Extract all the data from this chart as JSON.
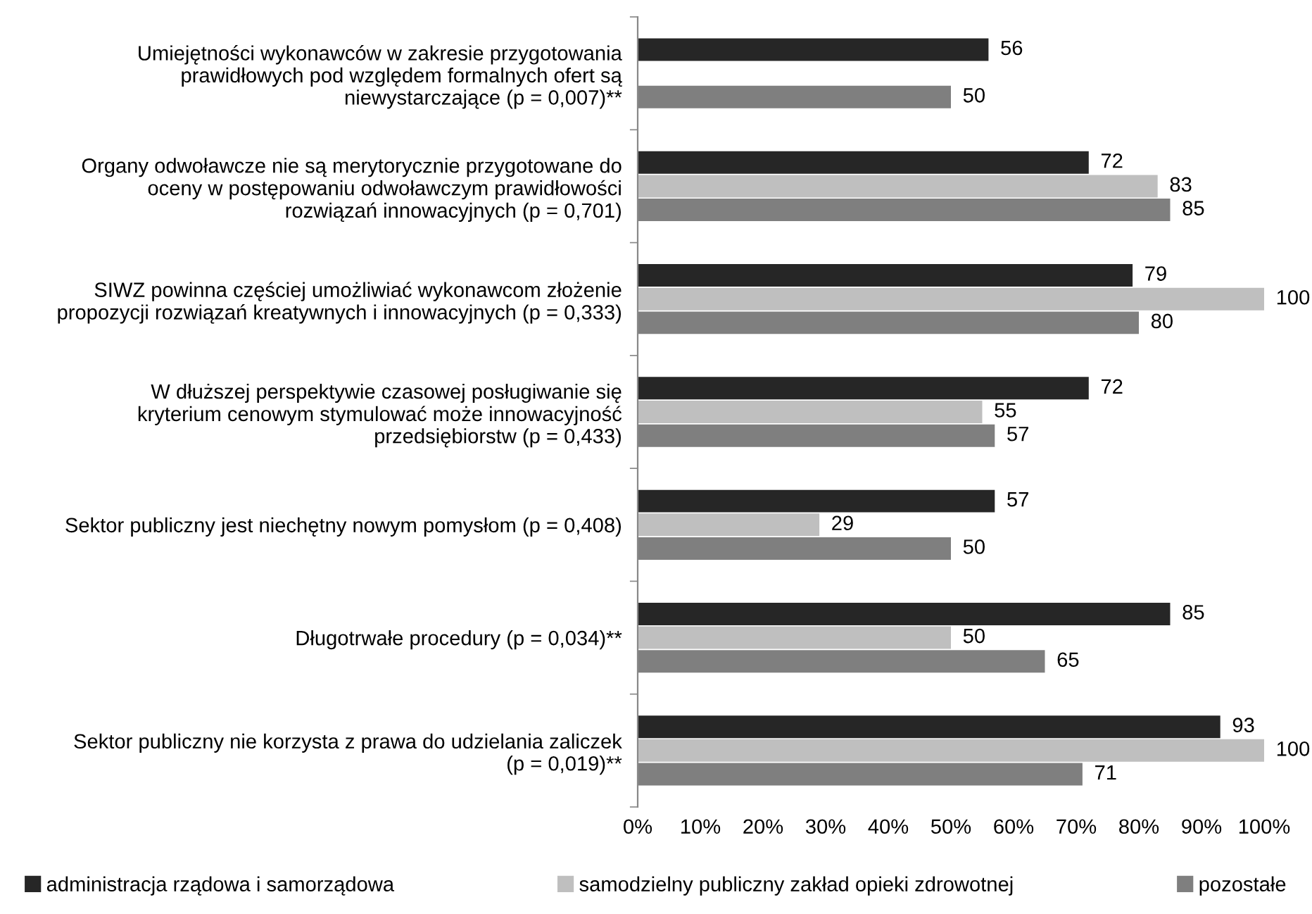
{
  "chart_data": {
    "type": "bar",
    "orientation": "horizontal",
    "categories": [
      "Umiejętności wykonawców w zakresie przygotowania\nprawidłowych pod względem formalnych ofert są\nniewystarczające (p = 0,007)**",
      "Organy odwoławcze nie są merytorycznie przygotowane do\noceny w postępowaniu odwoławczym prawidłowości\nrozwiązań innowacyjnych (p = 0,701)",
      "SIWZ powinna częściej umożliwiać wykonawcom złożenie\npropozycji rozwiązań kreatywnych i innowacyjnych (p = 0,333)",
      "W dłuższej perspektywie czasowej posługiwanie się\nkryterium cenowym stymulować może innowacyjność\nprzedsiębiorstw (p = 0,433)",
      "Sektor publiczny jest niechętny nowym pomysłom (p = 0,408)",
      "Długotrwałe procedury (p = 0,034)**",
      "Sektor publiczny nie korzysta z prawa do udzielania zaliczek\n(p = 0,019)**"
    ],
    "series": [
      {
        "name": "administracja rządowa i samorządowa",
        "color": "#262626",
        "values": [
          56,
          72,
          79,
          72,
          57,
          85,
          93
        ]
      },
      {
        "name": "samodzielny publiczny zakład opieki zdrowotnej",
        "color": "#bfbfbf",
        "values": [
          null,
          83,
          100,
          55,
          29,
          50,
          100
        ]
      },
      {
        "name": "pozostałe",
        "color": "#7f7f7f",
        "values": [
          50,
          85,
          80,
          57,
          50,
          65,
          71
        ]
      }
    ],
    "xlim": [
      0,
      100
    ],
    "xticks": [
      {
        "value": 0,
        "label": "0%"
      },
      {
        "value": 10,
        "label": "10%"
      },
      {
        "value": 20,
        "label": "20%"
      },
      {
        "value": 30,
        "label": "30%"
      },
      {
        "value": 40,
        "label": "40%"
      },
      {
        "value": 50,
        "label": "50%"
      },
      {
        "value": 60,
        "label": "60%"
      },
      {
        "value": 70,
        "label": "70%"
      },
      {
        "value": 80,
        "label": "80%"
      },
      {
        "value": 90,
        "label": "90%"
      },
      {
        "value": 100,
        "label": "100%"
      }
    ],
    "data_labels": true,
    "grid": false,
    "legend": "bottom"
  }
}
